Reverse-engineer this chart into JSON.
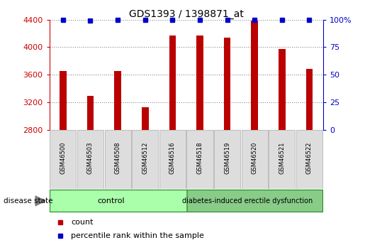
{
  "title": "GDS1393 / 1398871_at",
  "samples": [
    "GSM46500",
    "GSM46503",
    "GSM46508",
    "GSM46512",
    "GSM46516",
    "GSM46518",
    "GSM46519",
    "GSM46520",
    "GSM46521",
    "GSM46522"
  ],
  "counts": [
    3650,
    3290,
    3650,
    3130,
    4170,
    4170,
    4140,
    4390,
    3970,
    3680
  ],
  "percentile_y": [
    4400,
    4390,
    4400,
    4400,
    4400,
    4400,
    4400,
    4400,
    4400,
    4400
  ],
  "bar_color": "#bb0000",
  "percentile_color": "#0000cc",
  "ymin": 2800,
  "ymax": 4400,
  "yticks": [
    2800,
    3200,
    3600,
    4000,
    4400
  ],
  "right_yticks": [
    0,
    25,
    50,
    75,
    100
  ],
  "right_yticklabels": [
    "0",
    "25",
    "50",
    "75",
    "100%"
  ],
  "n_control": 5,
  "control_label": "control",
  "disease_label": "diabetes-induced erectile dysfunction",
  "disease_state_label": "disease state",
  "control_bg": "#aaffaa",
  "disease_bg": "#88cc88",
  "label_count": "count",
  "label_percentile": "percentile rank within the sample",
  "tick_label_color_left": "#cc0000",
  "tick_label_color_right": "#0000cc",
  "grid_color": "#888888",
  "bar_width": 0.25,
  "sample_box_color": "#dddddd",
  "sample_box_edge": "#aaaaaa"
}
